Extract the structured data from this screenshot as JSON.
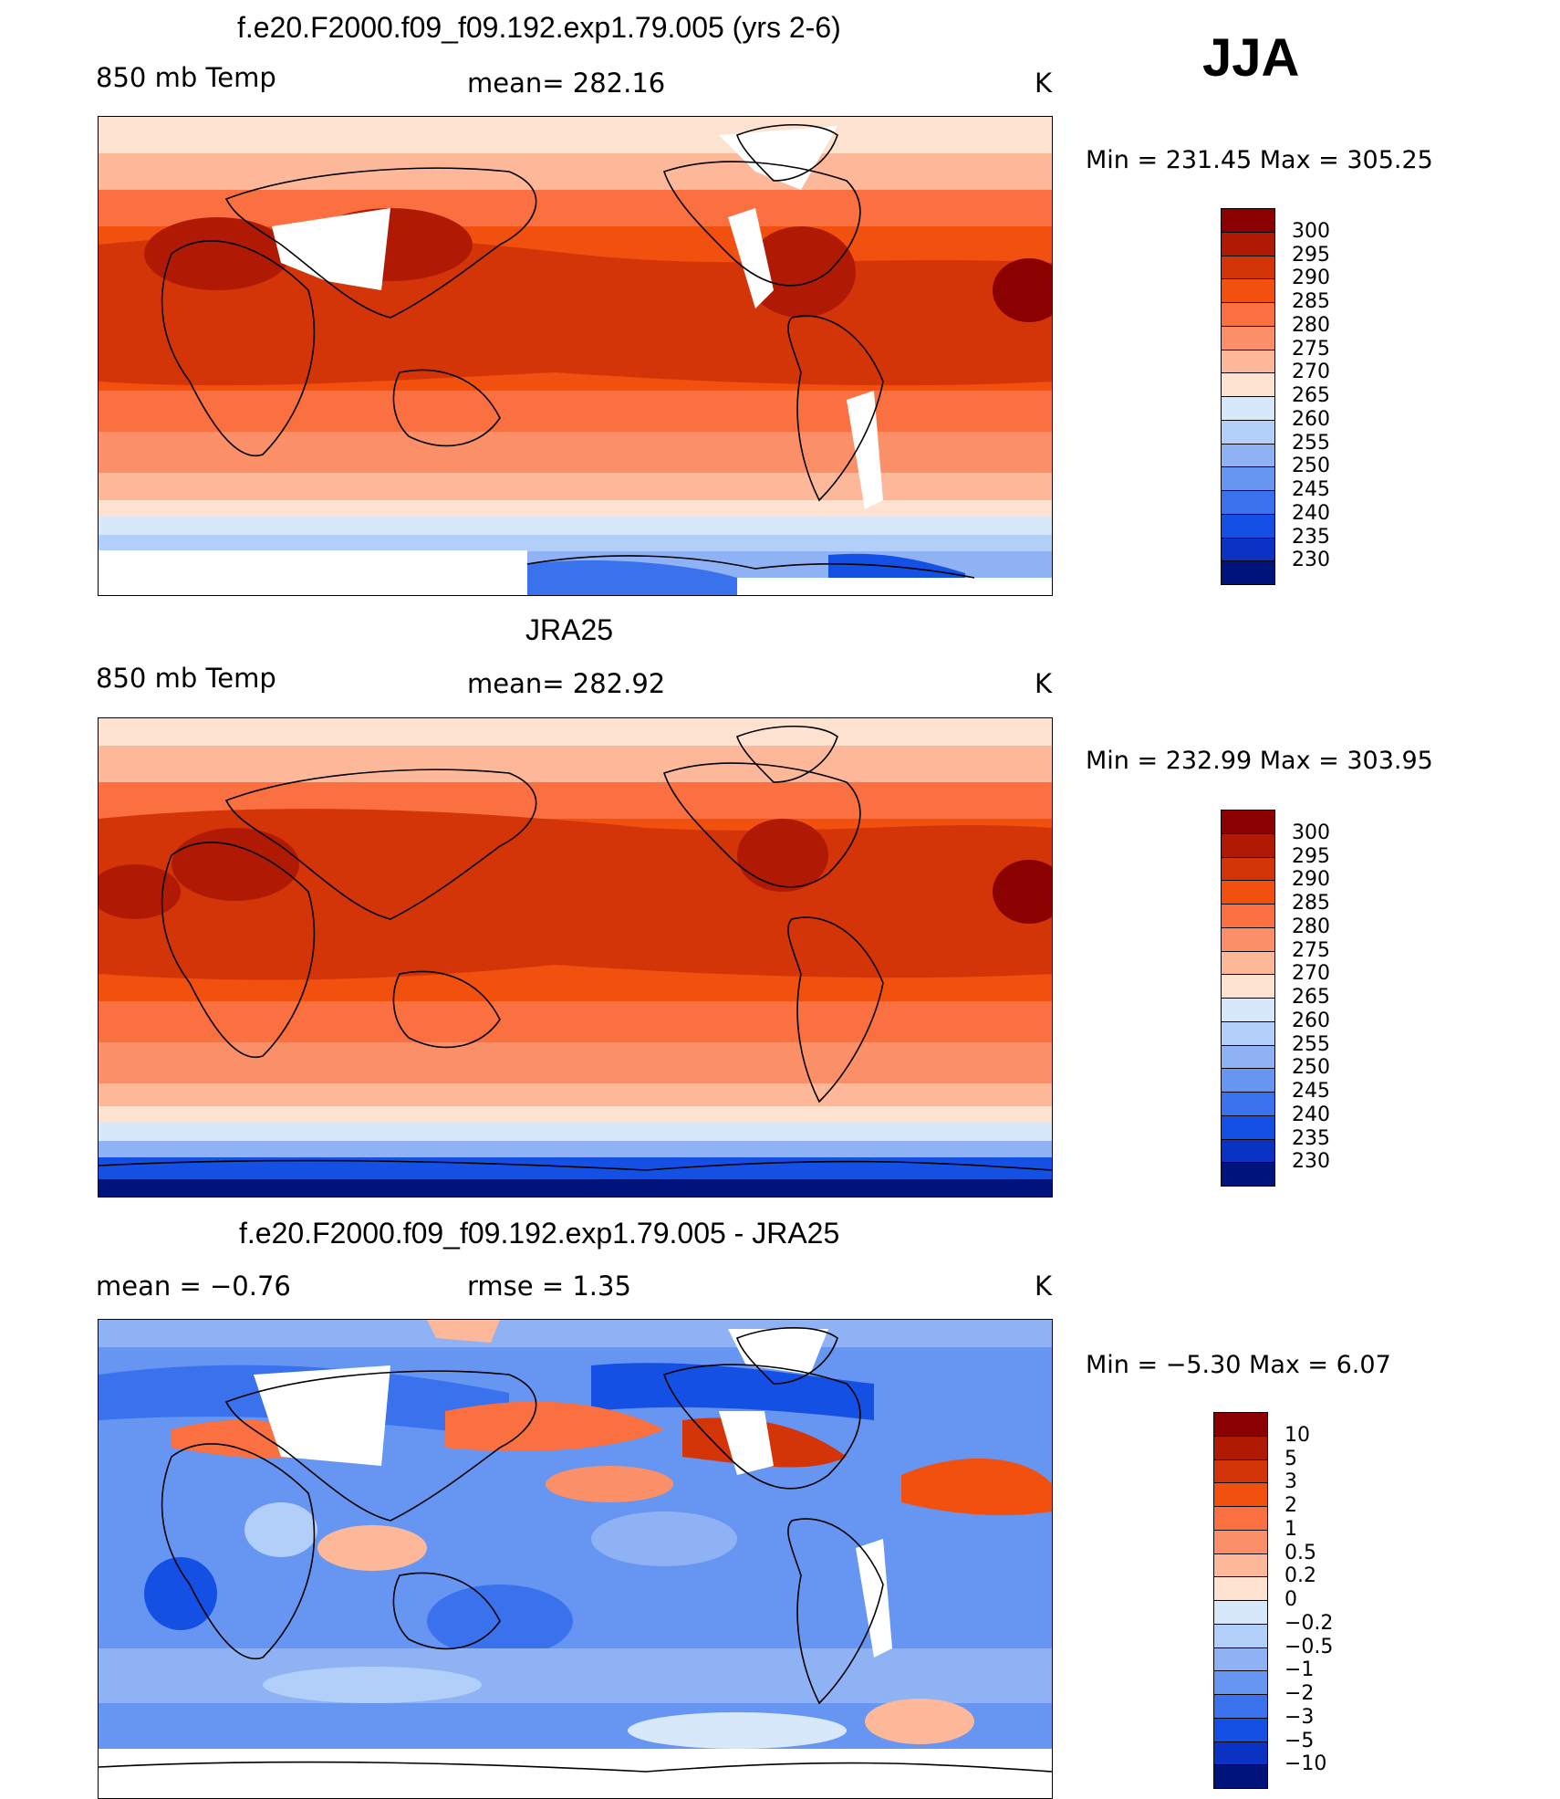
{
  "season": "JJA",
  "panels": [
    {
      "title": "f.e20.F2000.f09_f09.192.exp1.79.005 (yrs 2-6)",
      "left_label": "850 mb Temp",
      "center_label": "mean= 282.16",
      "units": "K",
      "minmax": "Min = 231.45 Max = 305.25",
      "colorbar_labels": [
        "300",
        "295",
        "290",
        "285",
        "280",
        "275",
        "270",
        "265",
        "260",
        "255",
        "250",
        "245",
        "240",
        "235",
        "230"
      ]
    },
    {
      "title": "JRA25",
      "left_label": "850 mb Temp",
      "center_label": "mean= 282.92",
      "units": "K",
      "minmax": "Min = 232.99 Max = 303.95",
      "colorbar_labels": [
        "300",
        "295",
        "290",
        "285",
        "280",
        "275",
        "270",
        "265",
        "260",
        "255",
        "250",
        "245",
        "240",
        "235",
        "230"
      ]
    },
    {
      "title": "f.e20.F2000.f09_f09.192.exp1.79.005 - JRA25",
      "left_label": "mean =   −0.76",
      "center_label": "rmse =    1.35",
      "units": "K",
      "minmax": "Min =  −5.30 Max =    6.07",
      "colorbar_labels": [
        "10",
        "5",
        "3",
        "2",
        "1",
        "0.5",
        "0.2",
        "0",
        "−0.2",
        "−0.5",
        "−1",
        "−2",
        "−3",
        "−5",
        "−10"
      ]
    }
  ],
  "colors": {
    "temp_scale": [
      "#8b0000",
      "#b01a05",
      "#d43508",
      "#f1500f",
      "#fa7040",
      "#fb9068",
      "#fdb89a",
      "#fde3cf",
      "#d6e8fa",
      "#b1cff8",
      "#8fb2f5",
      "#6796f2",
      "#3a72ee",
      "#1550e4",
      "#0a33c4",
      "#00137a"
    ],
    "diff_scale": [
      "#8b0000",
      "#b01a05",
      "#d43508",
      "#f1500f",
      "#fa7040",
      "#fb9068",
      "#fdb89a",
      "#fde3cf",
      "#d6e8fa",
      "#b1cff8",
      "#8fb2f5",
      "#6796f2",
      "#3a72ee",
      "#1550e4",
      "#0a33c4",
      "#00137a"
    ]
  },
  "chart_data": [
    {
      "type": "heatmap",
      "title": "f.e20.F2000.f09_f09.192.exp1.79.005 (yrs 2-6)",
      "variable": "850 mb Temp",
      "units": "K",
      "mean": 282.16,
      "min": 231.45,
      "max": 305.25,
      "contour_levels": [
        230,
        235,
        240,
        245,
        250,
        255,
        260,
        265,
        270,
        275,
        280,
        285,
        290,
        295,
        300
      ]
    },
    {
      "type": "heatmap",
      "title": "JRA25",
      "variable": "850 mb Temp",
      "units": "K",
      "mean": 282.92,
      "min": 232.99,
      "max": 303.95,
      "contour_levels": [
        230,
        235,
        240,
        245,
        250,
        255,
        260,
        265,
        270,
        275,
        280,
        285,
        290,
        295,
        300
      ]
    },
    {
      "type": "heatmap",
      "title": "f.e20.F2000.f09_f09.192.exp1.79.005 - JRA25",
      "units": "K",
      "mean": -0.76,
      "rmse": 1.35,
      "min": -5.3,
      "max": 6.07,
      "contour_levels": [
        -10,
        -5,
        -3,
        -2,
        -1,
        -0.5,
        -0.2,
        0,
        0.2,
        0.5,
        1,
        2,
        3,
        5,
        10
      ]
    }
  ]
}
